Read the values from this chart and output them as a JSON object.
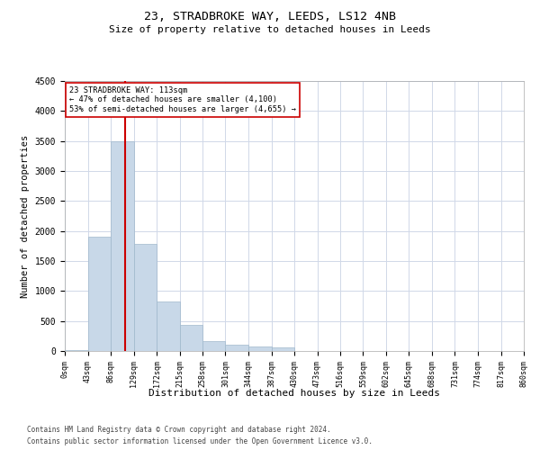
{
  "title_line1": "23, STRADBROKE WAY, LEEDS, LS12 4NB",
  "title_line2": "Size of property relative to detached houses in Leeds",
  "xlabel": "Distribution of detached houses by size in Leeds",
  "ylabel": "Number of detached properties",
  "footer_line1": "Contains HM Land Registry data © Crown copyright and database right 2024.",
  "footer_line2": "Contains public sector information licensed under the Open Government Licence v3.0.",
  "bin_edges": [
    0,
    43,
    86,
    129,
    172,
    215,
    258,
    301,
    344,
    387,
    430,
    473,
    516,
    559,
    602,
    645,
    688,
    731,
    774,
    817,
    860
  ],
  "bar_heights": [
    20,
    1900,
    3500,
    1780,
    820,
    440,
    160,
    100,
    75,
    60,
    0,
    0,
    0,
    0,
    0,
    0,
    0,
    0,
    0,
    0
  ],
  "bar_color": "#c8d8e8",
  "bar_edgecolor": "#a0b8cc",
  "grid_color": "#d0d8e8",
  "vline_x": 113,
  "vline_color": "#cc0000",
  "annotation_line1": "23 STRADBROKE WAY: 113sqm",
  "annotation_line2": "← 47% of detached houses are smaller (4,100)",
  "annotation_line3": "53% of semi-detached houses are larger (4,655) →",
  "annotation_box_edgecolor": "#cc0000",
  "ylim": [
    0,
    4500
  ],
  "yticks": [
    0,
    500,
    1000,
    1500,
    2000,
    2500,
    3000,
    3500,
    4000,
    4500
  ]
}
